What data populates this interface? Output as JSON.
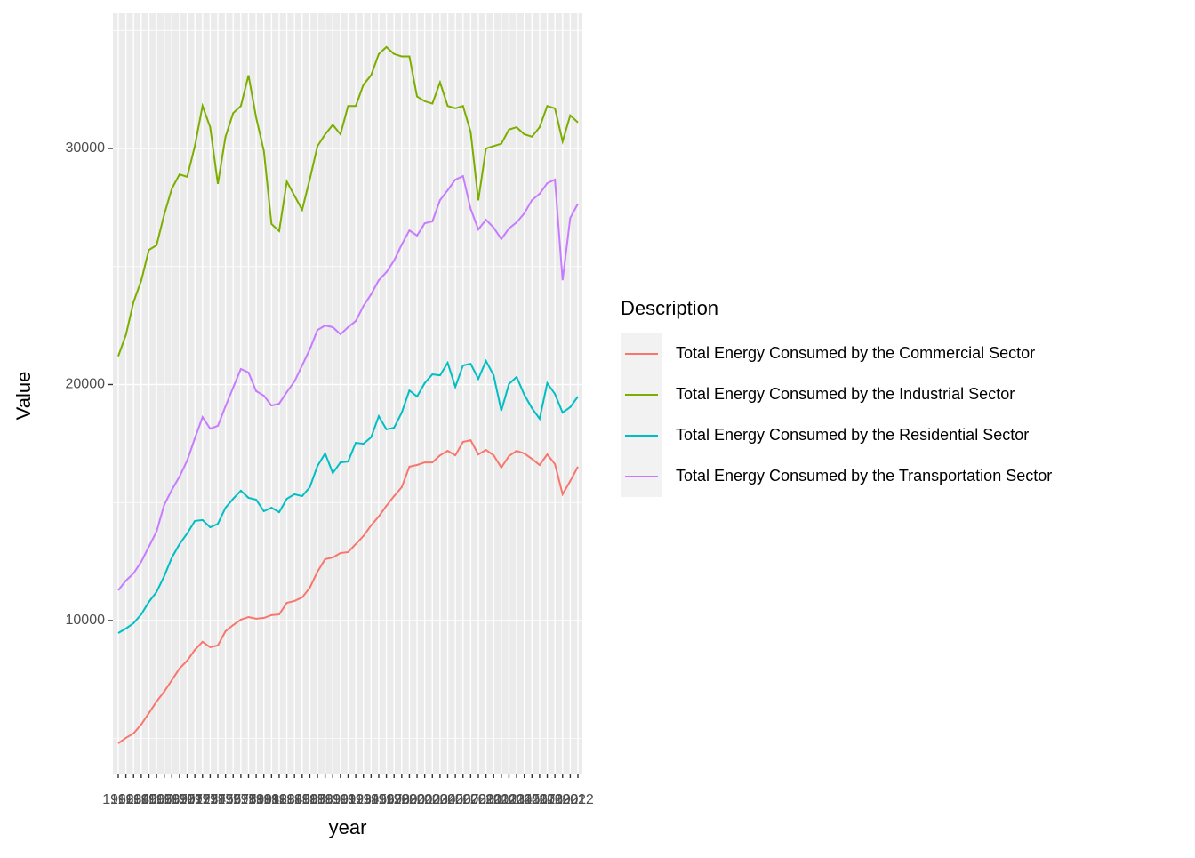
{
  "chart_data": {
    "type": "line",
    "x_label": "year",
    "y_label": "Value",
    "legend_title": "Description",
    "legend_position": "right",
    "categories": [
      "1962",
      "1963",
      "1964",
      "1965",
      "1966",
      "1967",
      "1968",
      "1969",
      "1970",
      "1971",
      "1972",
      "1973",
      "1974",
      "1975",
      "1976",
      "1977",
      "1978",
      "1979",
      "1980",
      "1981",
      "1982",
      "1983",
      "1984",
      "1985",
      "1986",
      "1987",
      "1988",
      "1989",
      "1990",
      "1991",
      "1992",
      "1993",
      "1994",
      "1995",
      "1996",
      "1997",
      "1998",
      "1999",
      "2000",
      "2001",
      "2002",
      "2003",
      "2004",
      "2005",
      "2006",
      "2007",
      "2008",
      "2009",
      "2010",
      "2011",
      "2012",
      "2013",
      "2014",
      "2015",
      "2016",
      "2017",
      "2018",
      "2019",
      "2020",
      "2021",
      "2022"
    ],
    "ylim": [
      3520,
      35725
    ],
    "yticks": [
      10000,
      20000,
      30000
    ],
    "y_minor_grid": [
      5000,
      15000,
      25000,
      35000
    ],
    "grid": true,
    "series": [
      {
        "name": "Total Energy Consumed by the Commercial Sector",
        "color": "#F8766D",
        "values": [
          4800,
          5030,
          5220,
          5600,
          6080,
          6570,
          6990,
          7480,
          7970,
          8300,
          8760,
          9100,
          8870,
          8950,
          9550,
          9810,
          10040,
          10150,
          10080,
          10110,
          10230,
          10260,
          10750,
          10830,
          10980,
          11390,
          12070,
          12600,
          12670,
          12860,
          12900,
          13240,
          13580,
          14030,
          14410,
          14860,
          15270,
          15650,
          16520,
          16590,
          16700,
          16700,
          17000,
          17190,
          17000,
          17570,
          17640,
          17040,
          17230,
          17000,
          16480,
          16970,
          17190,
          17080,
          16850,
          16590,
          17040,
          16630,
          15350,
          15910,
          16520
        ]
      },
      {
        "name": "Total Energy Consumed by the Industrial Sector",
        "color": "#7CAE00",
        "values": [
          21200,
          22100,
          23500,
          24400,
          25700,
          25900,
          27200,
          28300,
          28900,
          28800,
          30100,
          31800,
          30900,
          28500,
          30500,
          31500,
          31800,
          33100,
          31300,
          29900,
          26800,
          26500,
          28600,
          28000,
          27400,
          28700,
          30100,
          30600,
          31000,
          30600,
          31800,
          31800,
          32700,
          33100,
          34000,
          34300,
          34000,
          33900,
          33900,
          32200,
          32000,
          31900,
          32800,
          31800,
          31700,
          31800,
          30700,
          27800,
          30000,
          30100,
          30200,
          30800,
          30900,
          30600,
          30500,
          30900,
          31800,
          31700,
          30300,
          31400,
          31100
        ]
      },
      {
        "name": "Total Energy Consumed by the Residential Sector",
        "color": "#00BFC4",
        "values": [
          9470,
          9660,
          9890,
          10260,
          10790,
          11210,
          11880,
          12670,
          13240,
          13690,
          14220,
          14260,
          13950,
          14100,
          14780,
          15160,
          15500,
          15200,
          15120,
          14630,
          14780,
          14590,
          15160,
          15350,
          15270,
          15650,
          16550,
          17080,
          16250,
          16700,
          16740,
          17530,
          17490,
          17760,
          18660,
          18100,
          18170,
          18810,
          19750,
          19490,
          20060,
          20430,
          20390,
          20920,
          19900,
          20810,
          20880,
          20240,
          21000,
          20390,
          18890,
          20020,
          20320,
          19570,
          19000,
          18550,
          20060,
          19600,
          18810,
          19040,
          19490
        ]
      },
      {
        "name": "Total Energy Consumed by the Transportation Sector",
        "color": "#C77CFF",
        "values": [
          11280,
          11690,
          12000,
          12490,
          13130,
          13770,
          14900,
          15540,
          16100,
          16780,
          17720,
          18620,
          18130,
          18250,
          19080,
          19870,
          20660,
          20510,
          19720,
          19530,
          19110,
          19190,
          19680,
          20130,
          20810,
          21490,
          22310,
          22500,
          22430,
          22130,
          22430,
          22690,
          23330,
          23820,
          24420,
          24760,
          25250,
          25930,
          26530,
          26310,
          26830,
          26910,
          27810,
          28230,
          28680,
          28830,
          27440,
          26570,
          26980,
          26650,
          26160,
          26610,
          26870,
          27250,
          27810,
          28080,
          28530,
          28680,
          24420,
          27060,
          27660
        ]
      }
    ]
  }
}
